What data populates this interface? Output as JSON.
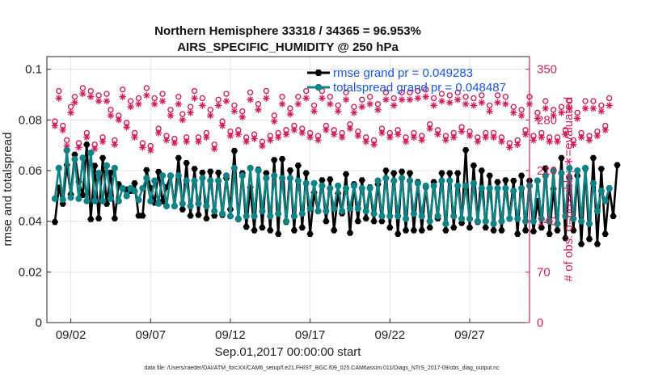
{
  "chart_data": {
    "type": "line",
    "title_line1": "Northern Hemisphere 33318 / 34365 = 96.953%",
    "title_line2": "AIRS_SPECIFIC_HUMIDITY @ 250 hPa",
    "xlabel": "Sep.01,2017 00:00:00 start",
    "ylabel": "rmse and totalspread",
    "ylabel_right": "# of obs: o=possible; ∗=evaluated",
    "footer": "data file: /Users/raeder/DAI/ATM_forcXX/CAM6_setup/f.e21.FHIST_BGC.f09_025.CAM6assim.011/Diags_NTrS_2017-09/obs_diag_output.nc",
    "xlim": [
      0.5,
      30.75
    ],
    "ylim": [
      0,
      0.105
    ],
    "ylim_right": [
      0,
      367.5
    ],
    "x_ticks": [
      {
        "value": 2,
        "label": "09/02"
      },
      {
        "value": 7,
        "label": "09/07"
      },
      {
        "value": 12,
        "label": "09/12"
      },
      {
        "value": 17,
        "label": "09/17"
      },
      {
        "value": 22,
        "label": "09/22"
      },
      {
        "value": 27,
        "label": "09/27"
      }
    ],
    "y_ticks": [
      {
        "value": 0,
        "label": "0"
      },
      {
        "value": 0.02,
        "label": "0.02"
      },
      {
        "value": 0.04,
        "label": "0.04"
      },
      {
        "value": 0.06,
        "label": "0.06"
      },
      {
        "value": 0.08,
        "label": "0.08"
      },
      {
        "value": 0.1,
        "label": "0.1"
      }
    ],
    "y_ticks_right": [
      {
        "value": 0,
        "label": "0"
      },
      {
        "value": 70,
        "label": "70"
      },
      {
        "value": 140,
        "label": "140"
      },
      {
        "value": 210,
        "label": "210"
      },
      {
        "value": 280,
        "label": "280"
      },
      {
        "value": 350,
        "label": "350"
      }
    ],
    "legend_position": "top-right",
    "series": [
      {
        "name": "rmse grand pr = 0.049283",
        "color": "#000000",
        "marker": "hexagon",
        "x_start": 1.0,
        "x_step": 0.25,
        "values": [
          0.0397,
          0.0533,
          0.0469,
          0.0622,
          0.0506,
          0.0663,
          0.0556,
          0.0503,
          0.0703,
          0.0408,
          0.0619,
          0.0411,
          0.065,
          0.0469,
          0.0592,
          0.0411,
          0.0546,
          0.0529,
          0.0526,
          0.0519,
          0.055,
          0.0422,
          0.0422,
          0.0602,
          0.0531,
          0.0473,
          0.0595,
          0.0478,
          0.0535,
          0.0578,
          0.046,
          0.065,
          0.0447,
          0.063,
          0.0422,
          0.0607,
          0.0425,
          0.0592,
          0.0411,
          0.0596,
          0.0422,
          0.0592,
          0.0425,
          0.057,
          0.0447,
          0.0678,
          0.0408,
          0.059,
          0.0378,
          0.0534,
          0.0364,
          0.0604,
          0.0375,
          0.059,
          0.0364,
          0.0642,
          0.035,
          0.0646,
          0.0397,
          0.0601,
          0.0364,
          0.062,
          0.0375,
          0.059,
          0.035,
          0.0513,
          0.044,
          0.0562,
          0.04,
          0.0565,
          0.0364,
          0.051,
          0.0431,
          0.0586,
          0.0354,
          0.0546,
          0.04,
          0.0562,
          0.0411,
          0.0534,
          0.04,
          0.0546,
          0.04,
          0.06,
          0.0375,
          0.059,
          0.035,
          0.0596,
          0.0364,
          0.059,
          0.0364,
          0.0555,
          0.0364,
          0.0535,
          0.0375,
          0.0555,
          0.0411,
          0.059,
          0.0364,
          0.059,
          0.0375,
          0.059,
          0.0393,
          0.0681,
          0.0375,
          0.062,
          0.0397,
          0.06,
          0.0375,
          0.058,
          0.0364,
          0.0555,
          0.0364,
          0.0562,
          0.0411,
          0.056,
          0.035,
          0.058,
          0.0364,
          0.056,
          0.036,
          0.048,
          0.0375,
          0.0609,
          0.035,
          0.0528,
          0.0364,
          0.065,
          0.0333,
          0.057,
          0.0364,
          0.058,
          0.031,
          0.0607,
          0.033,
          0.065,
          0.031,
          0.0607,
          0.035,
          0.053,
          0.042,
          0.0622
        ]
      },
      {
        "name": "totalspread grand pr = 0.048487",
        "color": "#0f8386",
        "marker": "circle",
        "x_start": 1.0,
        "x_step": 0.25,
        "values": [
          0.0489,
          0.061,
          0.0486,
          0.068,
          0.0494,
          0.0645,
          0.0489,
          0.065,
          0.048,
          0.067,
          0.048,
          0.059,
          0.048,
          0.062,
          0.0489,
          0.061,
          0.048,
          0.053,
          0.05,
          0.053,
          0.0519,
          0.0484,
          0.053,
          0.057,
          0.048,
          0.056,
          0.047,
          0.058,
          0.046,
          0.058,
          0.046,
          0.058,
          0.047,
          0.056,
          0.046,
          0.056,
          0.047,
          0.057,
          0.046,
          0.056,
          0.044,
          0.056,
          0.043,
          0.058,
          0.042,
          0.061,
          0.041,
          0.058,
          0.042,
          0.061,
          0.042,
          0.06,
          0.044,
          0.057,
          0.042,
          0.058,
          0.043,
          0.057,
          0.04,
          0.057,
          0.042,
          0.056,
          0.043,
          0.055,
          0.045,
          0.055,
          0.044,
          0.054,
          0.044,
          0.053,
          0.045,
          0.054,
          0.044,
          0.053,
          0.045,
          0.054,
          0.045,
          0.053,
          0.044,
          0.053,
          0.043,
          0.056,
          0.042,
          0.057,
          0.042,
          0.056,
          0.042,
          0.057,
          0.041,
          0.056,
          0.043,
          0.055,
          0.042,
          0.054,
          0.04,
          0.054,
          0.042,
          0.056,
          0.039,
          0.056,
          0.042,
          0.054,
          0.041,
          0.054,
          0.041,
          0.055,
          0.04,
          0.053,
          0.04,
          0.053,
          0.039,
          0.053,
          0.04,
          0.053,
          0.041,
          0.052,
          0.041,
          0.053,
          0.04,
          0.054,
          0.04,
          0.056,
          0.041,
          0.058,
          0.04,
          0.06,
          0.039,
          0.059,
          0.042,
          0.061,
          0.041,
          0.06,
          0.04,
          0.061,
          0.039,
          0.055,
          0.044,
          0.052,
          0.048,
          0.053
        ]
      },
      {
        "name": "obs possible",
        "color": "#d21d5b",
        "marker": "o",
        "axis": "right",
        "x_start": 1.0,
        "x_step": 0.25,
        "values": [
          278,
          320,
          272,
          252,
          298,
          312,
          248,
          324,
          262,
          320,
          246,
          314,
          256,
          316,
          294,
          252,
          286,
          322,
          276,
          306,
          262,
          310,
          248,
          324,
          244,
          310,
          268,
          316,
          258,
          294,
          254,
          312,
          288,
          256,
          298,
          320,
          256,
          310,
          262,
          294,
          246,
          308,
          278,
          316,
          264,
          300,
          266,
          292,
          256,
          318,
          260,
          302,
          250,
          320,
          258,
          286,
          262,
          312,
          266,
          296,
          272,
          312,
          268,
          320,
          262,
          300,
          258,
          320,
          272,
          312,
          266,
          300,
          262,
          318,
          274,
          298,
          264,
          308,
          256,
          312,
          252,
          302,
          268,
          318,
          262,
          310,
          266,
          318,
          256,
          318,
          262,
          320,
          258,
          322,
          274,
          310,
          266,
          316,
          258,
          314,
          262,
          318,
          270,
          312,
          264,
          310,
          256,
          314,
          262,
          300,
          262,
          314,
          256,
          312,
          248,
          298,
          252,
          294,
          266,
          312,
          258,
          290,
          262,
          306,
          256,
          294,
          256,
          298,
          266,
          306,
          252,
          290,
          262,
          306,
          258,
          306,
          264,
          300,
          272,
          310
        ]
      },
      {
        "name": "obs evaluated",
        "color": "#d21d5b",
        "marker": "asterisk",
        "axis": "right",
        "x_start": 1.0,
        "x_step": 0.25,
        "values": [
          272,
          310,
          266,
          244,
          290,
          304,
          242,
          316,
          256,
          312,
          240,
          306,
          250,
          306,
          286,
          246,
          280,
          312,
          270,
          298,
          256,
          302,
          242,
          314,
          238,
          302,
          262,
          306,
          252,
          286,
          248,
          302,
          280,
          250,
          290,
          310,
          250,
          300,
          256,
          286,
          240,
          300,
          272,
          306,
          258,
          292,
          260,
          284,
          250,
          308,
          254,
          294,
          244,
          310,
          252,
          278,
          256,
          302,
          260,
          288,
          266,
          302,
          262,
          310,
          256,
          292,
          252,
          310,
          266,
          302,
          260,
          292,
          256,
          308,
          268,
          290,
          258,
          298,
          250,
          302,
          246,
          294,
          262,
          308,
          256,
          300,
          260,
          308,
          250,
          308,
          256,
          310,
          252,
          312,
          268,
          300,
          260,
          306,
          252,
          304,
          256,
          308,
          264,
          302,
          258,
          300,
          250,
          304,
          256,
          292,
          256,
          304,
          250,
          302,
          242,
          290,
          246,
          286,
          260,
          302,
          252,
          282,
          256,
          296,
          250,
          286,
          250,
          290,
          260,
          296,
          246,
          282,
          256,
          296,
          252,
          296,
          258,
          292,
          266,
          300
        ]
      }
    ]
  }
}
